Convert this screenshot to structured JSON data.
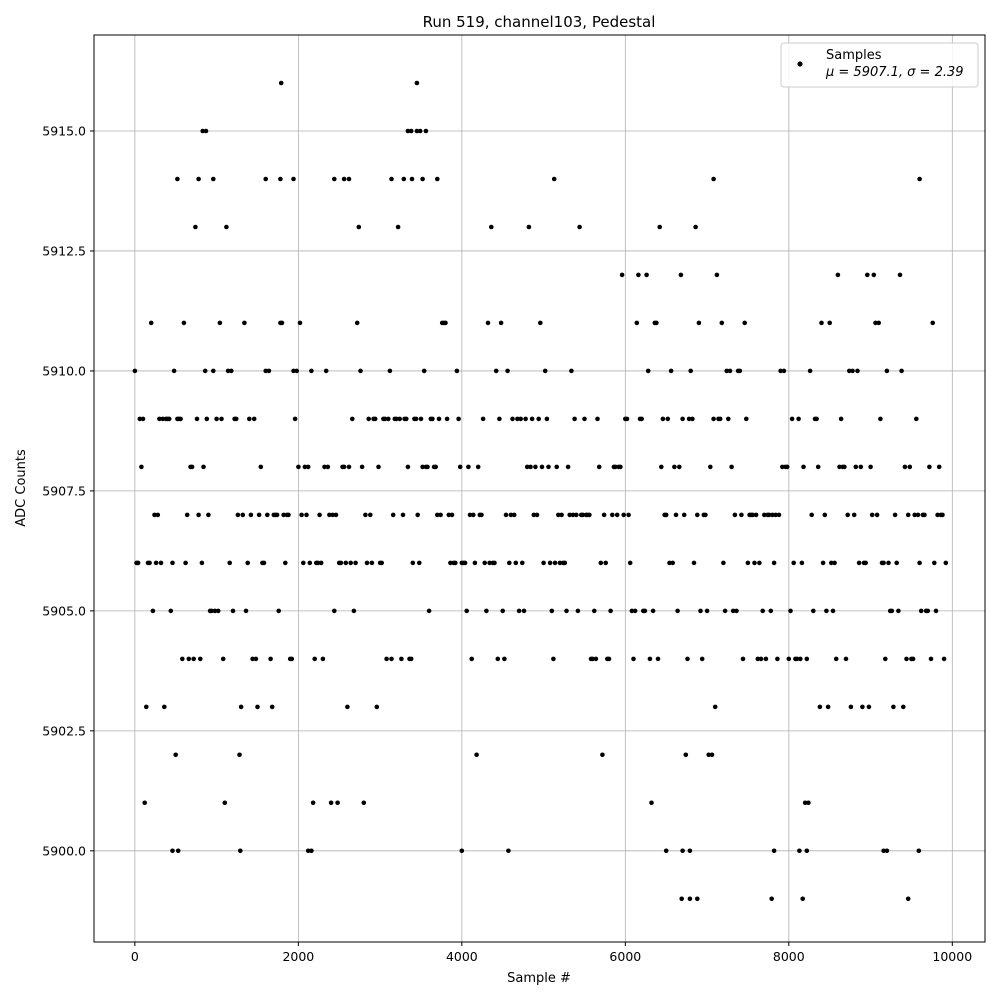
{
  "chart_data": {
    "type": "scatter",
    "title": "Run 519, channel103, Pedestal",
    "xlabel": "Sample #",
    "ylabel": "ADC Counts",
    "xlim": [
      -500,
      10400
    ],
    "ylim": [
      5898.1,
      5917.0
    ],
    "xticks": [
      0,
      2000,
      4000,
      6000,
      8000,
      10000
    ],
    "xtick_labels": [
      "0",
      "2000",
      "4000",
      "6000",
      "8000",
      "10000"
    ],
    "yticks": [
      5900.0,
      5902.5,
      5905.0,
      5907.5,
      5910.0,
      5912.5,
      5915.0
    ],
    "ytick_labels": [
      "5900.0",
      "5902.5",
      "5905.0",
      "5907.5",
      "5910.0",
      "5912.5",
      "5915.0"
    ],
    "grid": true,
    "legend_position": "top-right",
    "series": [
      {
        "name": "Samples",
        "name_sub": "μ = 5907.1, σ = 2.39",
        "color": "#000000",
        "x_range": [
          0,
          9920
        ],
        "mean": 5907.1,
        "std": 2.39,
        "sample_step": 20,
        "outliers": [
          {
            "x": 1790,
            "y": 5916
          },
          {
            "x": 3450,
            "y": 5916
          },
          {
            "x": 830,
            "y": 5915
          },
          {
            "x": 870,
            "y": 5915
          },
          {
            "x": 3340,
            "y": 5915
          },
          {
            "x": 3380,
            "y": 5915
          },
          {
            "x": 3450,
            "y": 5915
          },
          {
            "x": 3490,
            "y": 5915
          },
          {
            "x": 3560,
            "y": 5915
          },
          {
            "x": 520,
            "y": 5914
          },
          {
            "x": 780,
            "y": 5914
          },
          {
            "x": 960,
            "y": 5914
          },
          {
            "x": 1600,
            "y": 5914
          },
          {
            "x": 1780,
            "y": 5914
          },
          {
            "x": 1940,
            "y": 5914
          },
          {
            "x": 2440,
            "y": 5914
          },
          {
            "x": 2560,
            "y": 5914
          },
          {
            "x": 2620,
            "y": 5914
          },
          {
            "x": 3140,
            "y": 5914
          },
          {
            "x": 3290,
            "y": 5914
          },
          {
            "x": 3390,
            "y": 5914
          },
          {
            "x": 3520,
            "y": 5914
          },
          {
            "x": 3700,
            "y": 5914
          },
          {
            "x": 5130,
            "y": 5914
          },
          {
            "x": 7080,
            "y": 5914
          },
          {
            "x": 9600,
            "y": 5914
          },
          {
            "x": 4570,
            "y": 5900
          },
          {
            "x": 4000,
            "y": 5900
          },
          {
            "x": 1290,
            "y": 5900
          },
          {
            "x": 460,
            "y": 5900
          },
          {
            "x": 530,
            "y": 5900
          },
          {
            "x": 2120,
            "y": 5900
          },
          {
            "x": 2160,
            "y": 5900
          },
          {
            "x": 6500,
            "y": 5900
          },
          {
            "x": 6700,
            "y": 5900
          },
          {
            "x": 6790,
            "y": 5900
          },
          {
            "x": 7820,
            "y": 5900
          },
          {
            "x": 8130,
            "y": 5900
          },
          {
            "x": 8220,
            "y": 5900
          },
          {
            "x": 9160,
            "y": 5900
          },
          {
            "x": 9200,
            "y": 5900
          },
          {
            "x": 9590,
            "y": 5900
          },
          {
            "x": 6690,
            "y": 5899
          },
          {
            "x": 6790,
            "y": 5899
          },
          {
            "x": 6880,
            "y": 5899
          },
          {
            "x": 7790,
            "y": 5899
          },
          {
            "x": 8170,
            "y": 5899
          },
          {
            "x": 9460,
            "y": 5899
          }
        ]
      }
    ]
  }
}
